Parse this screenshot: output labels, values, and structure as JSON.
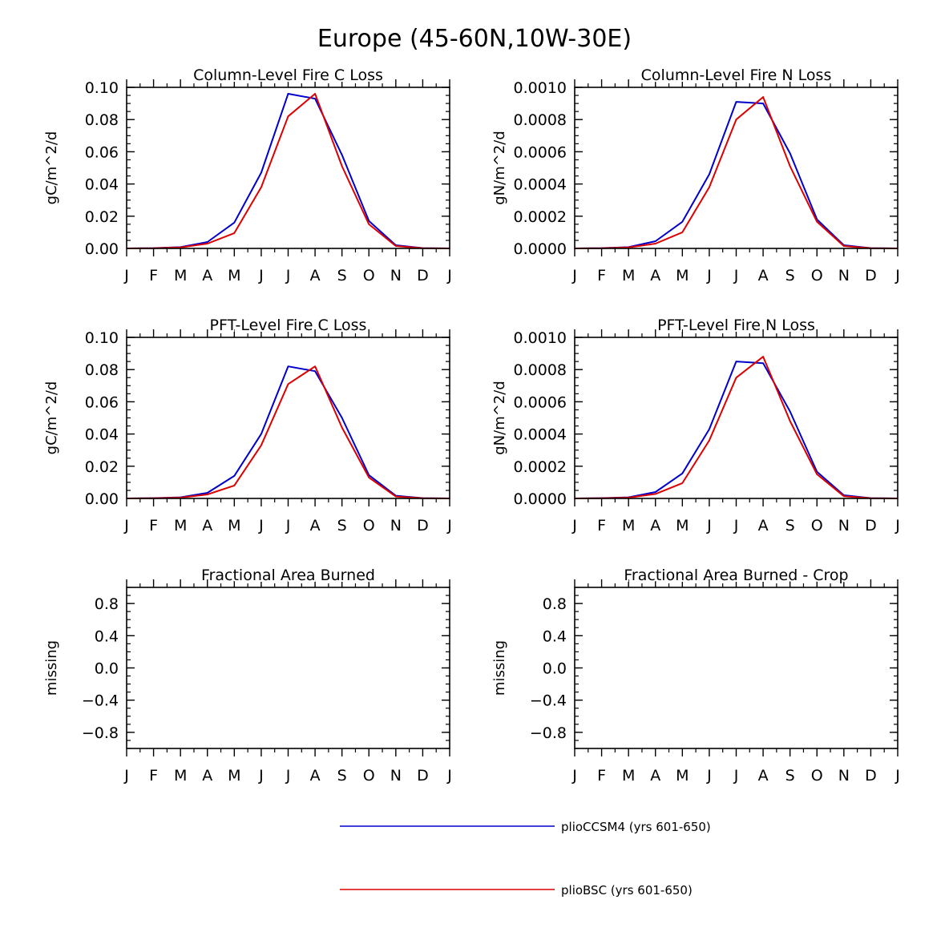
{
  "figure": {
    "title": "Europe (45-60N,10W-30E)"
  },
  "legend": [
    {
      "name": "plioCCSM4 (yrs 601-650)",
      "color": "#0000cc"
    },
    {
      "name": "plioBSC (yrs 601-650)",
      "color": "#dd0000"
    }
  ],
  "chart_data": [
    {
      "type": "line",
      "title": "Column-Level Fire C Loss",
      "ylabel": "gC/m^2/d",
      "xlabel": "",
      "categories": [
        "J",
        "F",
        "M",
        "A",
        "M",
        "J",
        "J",
        "A",
        "S",
        "O",
        "N",
        "D",
        "J"
      ],
      "ylim": [
        0,
        0.1
      ],
      "yticks": [
        "0.00",
        "0.02",
        "0.04",
        "0.06",
        "0.08",
        "0.10"
      ],
      "series": [
        {
          "name": "plioCCSM4 (yrs 601-650)",
          "color": "#0000cc",
          "values": [
            0.0,
            0.0002,
            0.0008,
            0.004,
            0.016,
            0.047,
            0.096,
            0.093,
            0.058,
            0.017,
            0.002,
            0.0002,
            0.0
          ]
        },
        {
          "name": "plioBSC (yrs 601-650)",
          "color": "#dd0000",
          "values": [
            0.0,
            0.0001,
            0.0006,
            0.003,
            0.0095,
            0.038,
            0.082,
            0.096,
            0.051,
            0.015,
            0.0015,
            0.0001,
            0.0
          ]
        }
      ]
    },
    {
      "type": "line",
      "title": "Column-Level Fire N Loss",
      "ylabel": "gN/m^2/d",
      "xlabel": "",
      "categories": [
        "J",
        "F",
        "M",
        "A",
        "M",
        "J",
        "J",
        "A",
        "S",
        "O",
        "N",
        "D",
        "J"
      ],
      "ylim": [
        0,
        0.001
      ],
      "yticks": [
        "0.0000",
        "0.0002",
        "0.0004",
        "0.0006",
        "0.0008",
        "0.0010"
      ],
      "series": [
        {
          "name": "plioCCSM4 (yrs 601-650)",
          "color": "#0000cc",
          "values": [
            0.0,
            2e-06,
            8e-06,
            4.5e-05,
            0.000165,
            0.00046,
            0.00091,
            0.0009,
            0.00059,
            0.00018,
            2e-05,
            2e-06,
            0.0
          ]
        },
        {
          "name": "plioBSC (yrs 601-650)",
          "color": "#dd0000",
          "values": [
            0.0,
            1e-06,
            6e-06,
            3e-05,
            0.0001,
            0.00038,
            0.0008,
            0.00094,
            0.00051,
            0.000165,
            1.5e-05,
            1e-06,
            0.0
          ]
        }
      ]
    },
    {
      "type": "line",
      "title": "PFT-Level Fire C Loss",
      "ylabel": "gC/m^2/d",
      "xlabel": "",
      "categories": [
        "J",
        "F",
        "M",
        "A",
        "M",
        "J",
        "J",
        "A",
        "S",
        "O",
        "N",
        "D",
        "J"
      ],
      "ylim": [
        0,
        0.1
      ],
      "yticks": [
        "0.00",
        "0.02",
        "0.04",
        "0.06",
        "0.08",
        "0.10"
      ],
      "series": [
        {
          "name": "plioCCSM4 (yrs 601-650)",
          "color": "#0000cc",
          "values": [
            0.0,
            0.0002,
            0.0007,
            0.0035,
            0.014,
            0.04,
            0.082,
            0.079,
            0.05,
            0.0145,
            0.0017,
            0.0002,
            0.0
          ]
        },
        {
          "name": "plioBSC (yrs 601-650)",
          "color": "#dd0000",
          "values": [
            0.0,
            0.0001,
            0.0005,
            0.0025,
            0.008,
            0.033,
            0.071,
            0.082,
            0.044,
            0.013,
            0.0012,
            0.0001,
            0.0
          ]
        }
      ]
    },
    {
      "type": "line",
      "title": "PFT-Level Fire N Loss",
      "ylabel": "gN/m^2/d",
      "xlabel": "",
      "categories": [
        "J",
        "F",
        "M",
        "A",
        "M",
        "J",
        "J",
        "A",
        "S",
        "O",
        "N",
        "D",
        "J"
      ],
      "ylim": [
        0,
        0.001
      ],
      "yticks": [
        "0.0000",
        "0.0002",
        "0.0004",
        "0.0006",
        "0.0008",
        "0.0010"
      ],
      "series": [
        {
          "name": "plioCCSM4 (yrs 601-650)",
          "color": "#0000cc",
          "values": [
            0.0,
            2e-06,
            7e-06,
            4e-05,
            0.000155,
            0.00043,
            0.00085,
            0.00084,
            0.00054,
            0.000165,
            2e-05,
            2e-06,
            0.0
          ]
        },
        {
          "name": "plioBSC (yrs 601-650)",
          "color": "#dd0000",
          "values": [
            0.0,
            1e-06,
            5e-06,
            2.8e-05,
            9.5e-05,
            0.00036,
            0.00075,
            0.00088,
            0.00048,
            0.00015,
            1.4e-05,
            1e-06,
            0.0
          ]
        }
      ]
    },
    {
      "type": "line",
      "title": "Fractional Area Burned",
      "ylabel": "missing",
      "xlabel": "",
      "categories": [
        "J",
        "F",
        "M",
        "A",
        "M",
        "J",
        "J",
        "A",
        "S",
        "O",
        "N",
        "D",
        "J"
      ],
      "ylim": [
        -1,
        1
      ],
      "yticks": [
        "-0.8",
        "-0.4",
        "0.0",
        "0.4",
        "0.8"
      ],
      "series": []
    },
    {
      "type": "line",
      "title": "Fractional Area Burned - Crop",
      "ylabel": "missing",
      "xlabel": "",
      "categories": [
        "J",
        "F",
        "M",
        "A",
        "M",
        "J",
        "J",
        "A",
        "S",
        "O",
        "N",
        "D",
        "J"
      ],
      "ylim": [
        -1,
        1
      ],
      "yticks": [
        "-0.8",
        "-0.4",
        "0.0",
        "0.4",
        "0.8"
      ],
      "series": []
    }
  ]
}
